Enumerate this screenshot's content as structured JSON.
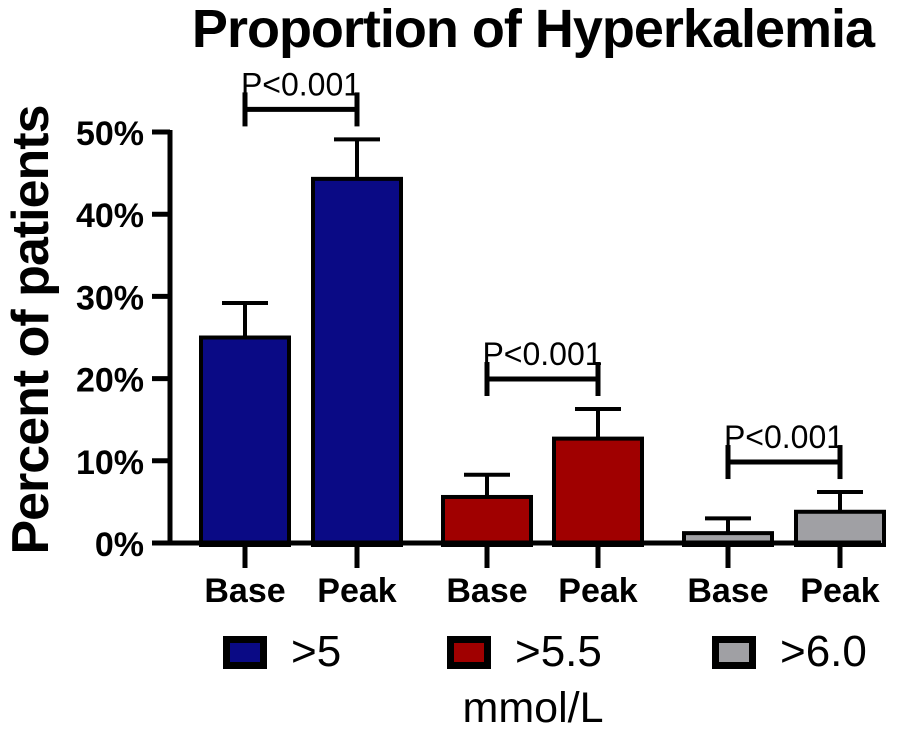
{
  "chart_data": {
    "type": "bar",
    "title": "Proportion of Hyperkalemia",
    "ylabel": "Percent of patients",
    "xlabel": "mmol/L",
    "ylim": [
      0,
      50
    ],
    "ytick_labels": [
      "0%",
      "10%",
      "20%",
      "30%",
      "40%",
      "50%"
    ],
    "categories": [
      "Base",
      "Peak"
    ],
    "grid": false,
    "legend_position": "bottom",
    "groups": [
      {
        "legend": ">5",
        "color": "#0a0a85",
        "significance": "P<0.001",
        "bars": [
          {
            "category": "Base",
            "value": 25.0,
            "error_upper": 4.2
          },
          {
            "category": "Peak",
            "value": 44.3,
            "error_upper": 4.8
          }
        ]
      },
      {
        "legend": ">5.5",
        "color": "#a00000",
        "significance": "P<0.001",
        "bars": [
          {
            "category": "Base",
            "value": 5.6,
            "error_upper": 2.7
          },
          {
            "category": "Peak",
            "value": 12.7,
            "error_upper": 3.6
          }
        ]
      },
      {
        "legend": ">6.0",
        "color": "#a0a0a4",
        "significance": "P<0.001",
        "bars": [
          {
            "category": "Base",
            "value": 1.2,
            "error_upper": 1.8
          },
          {
            "category": "Peak",
            "value": 3.8,
            "error_upper": 2.4
          }
        ]
      }
    ]
  }
}
